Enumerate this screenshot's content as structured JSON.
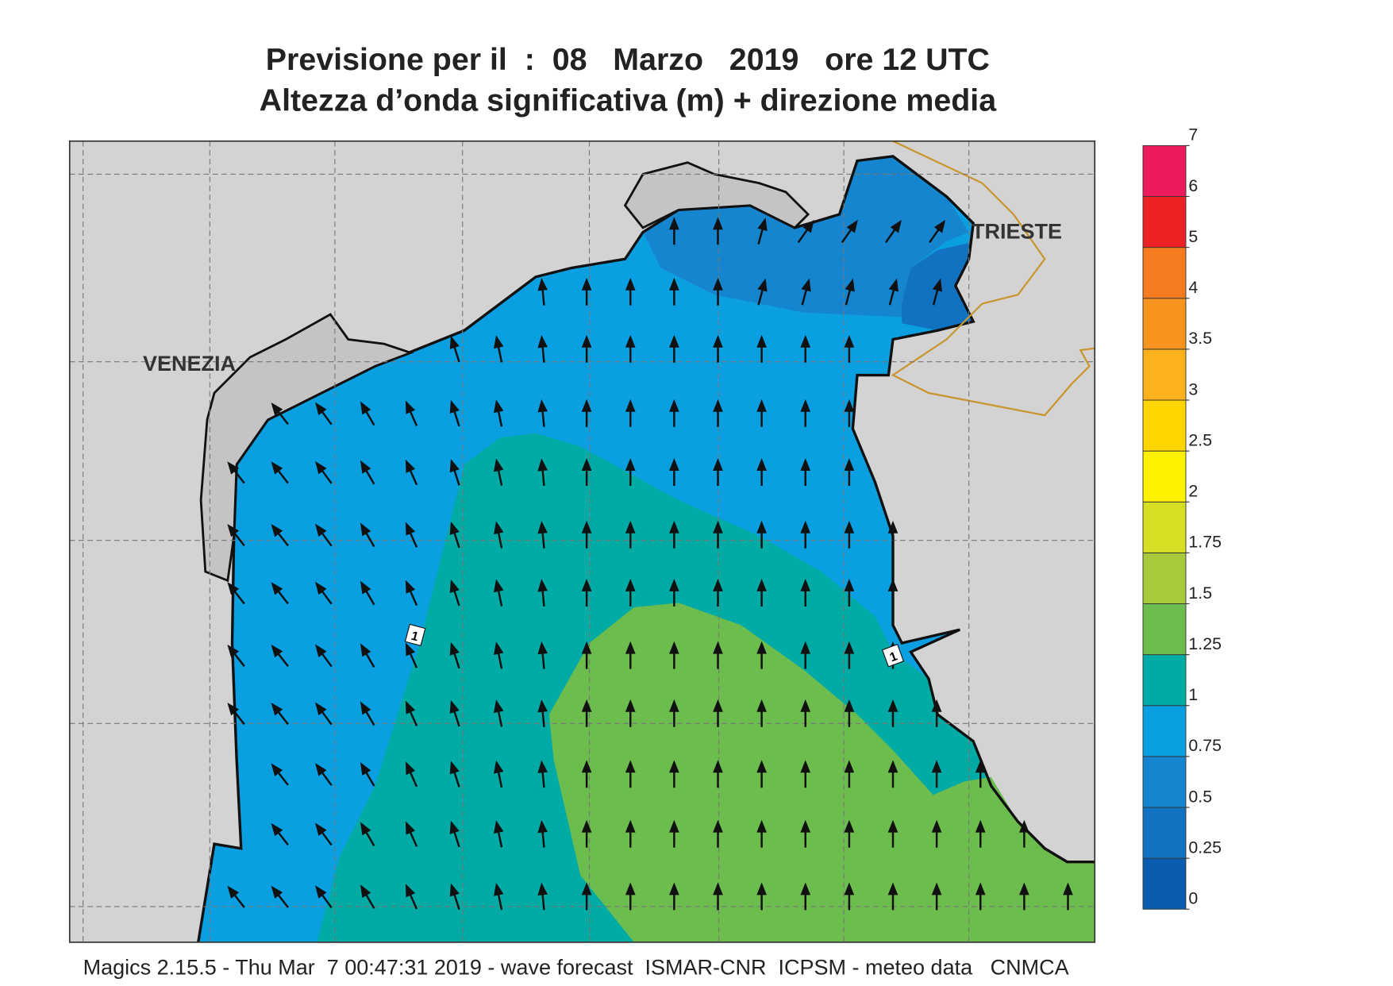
{
  "title": {
    "line1": "Previsione per il  :  08   Marzo   2019   ore 12 UTC",
    "line2": "Altezza d’onda significativa (m) + direzione media"
  },
  "map_labels": {
    "cities": [
      "VENEZIA",
      "TRIESTE"
    ],
    "contour_labels": [
      "1",
      "1"
    ]
  },
  "colorbar": {
    "levels": [
      0,
      0.25,
      0.5,
      0.75,
      1,
      1.25,
      1.5,
      1.75,
      2,
      2.5,
      3,
      3.5,
      4,
      5,
      6,
      7
    ],
    "colors": [
      "#0b5cae",
      "#1272c2",
      "#1685cf",
      "#0a9fe0",
      "#00aba6",
      "#6cbd4e",
      "#a6ca3b",
      "#d6df22",
      "#fff200",
      "#ffd500",
      "#fbb21b",
      "#f7941d",
      "#f47b20",
      "#ed2224",
      "#ec1b5b"
    ]
  },
  "footer": "Magics 2.15.5 - Thu Mar  7 00:47:31 2019 - wave forecast  ISMAR-CNR  ICPSM - meteo data   CNMCA"
}
